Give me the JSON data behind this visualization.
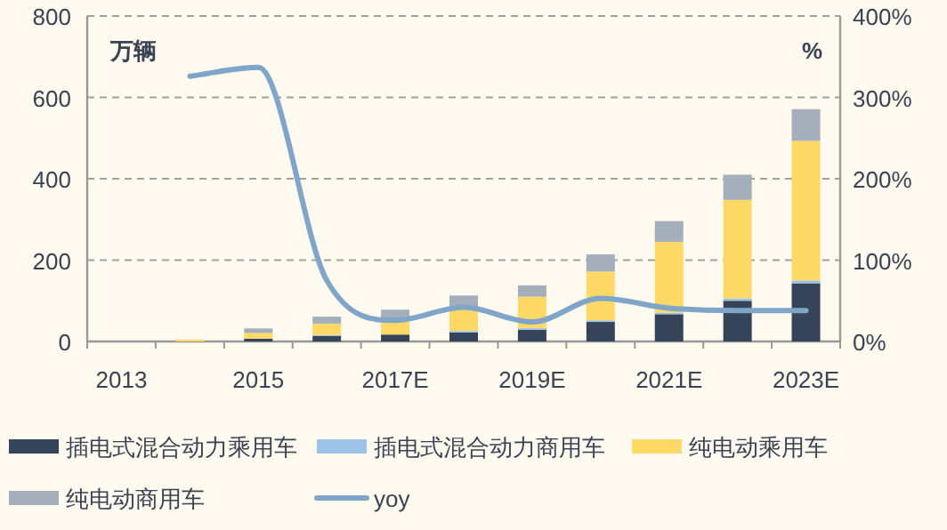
{
  "chart_data": {
    "type": "bar",
    "stacked": true,
    "ylabel": "万辆",
    "y2label": "%",
    "categories": [
      "2013",
      null,
      "2015",
      null,
      "2017E",
      null,
      "2019E",
      null,
      "2021E",
      null,
      "2023E"
    ],
    "series": [
      {
        "name": "插电式混合动力乘用车",
        "color": "#36445a",
        "values": [
          0,
          null,
          7,
          14,
          17,
          22,
          29,
          48,
          67,
          100,
          143
        ]
      },
      {
        "name": "插电式混合动力商用车",
        "color": "#9dc3e6",
        "values": [
          0,
          0,
          null,
          2,
          null,
          4,
          4,
          4,
          4,
          6,
          7
        ]
      },
      {
        "name": "纯电动乘用车",
        "color": "#ffd966",
        "values": [
          0,
          5,
          14,
          28,
          38,
          59,
          77,
          120,
          174,
          242,
          343
        ]
      },
      {
        "name": "纯电动商用车",
        "color": "#a5aebb",
        "values": [
          0,
          null,
          11,
          17,
          23,
          28,
          28,
          42,
          51,
          62,
          78
        ]
      },
      {
        "name": "yoy",
        "type": "line",
        "axis": "y2",
        "color": "#7fa6c9",
        "values": [
          null,
          326,
          337,
          75,
          26,
          42,
          24,
          53,
          41,
          38,
          38
        ]
      }
    ],
    "ylim": [
      0,
      800
    ],
    "yticks": [
      0,
      200,
      400,
      600,
      800
    ],
    "y2lim": [
      0,
      400
    ],
    "y2ticks": [
      {
        "value": 0,
        "label": "0%"
      },
      {
        "value": 100,
        "label": "100%"
      },
      {
        "value": 200,
        "label": "200%"
      },
      {
        "value": 300,
        "label": "300%"
      },
      {
        "value": 400,
        "label": "400%"
      }
    ],
    "grid": "y",
    "legend": "bottom",
    "marker": "none"
  }
}
